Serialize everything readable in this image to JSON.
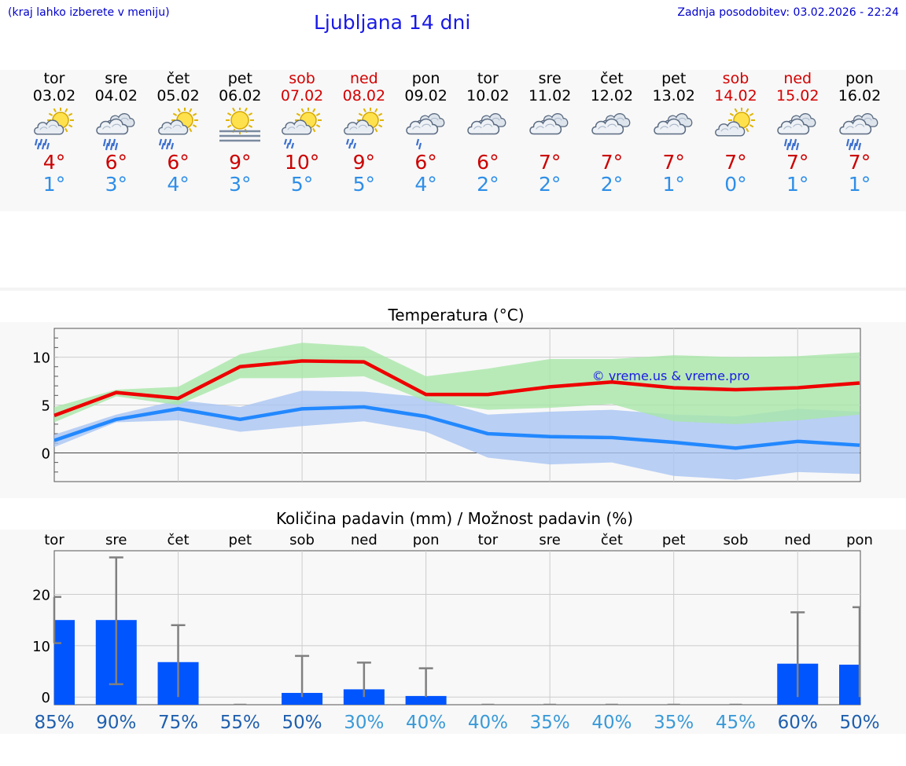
{
  "header": {
    "left_note": "(kraj lahko izberete v meniju)",
    "title": "Ljubljana 14 dni",
    "updated": "Zadnja posodobitev: 03.02.2026 - 22:24"
  },
  "days": [
    {
      "weekday": "tor",
      "date": "03.02",
      "icon": "partly-sunny-rain-icon",
      "tmax": "4°",
      "tmin": "1°",
      "weekend": false
    },
    {
      "weekday": "sre",
      "date": "04.02",
      "icon": "cloudy-rain-icon",
      "tmax": "6°",
      "tmin": "3°",
      "weekend": false
    },
    {
      "weekday": "čet",
      "date": "05.02",
      "icon": "partly-sunny-rain-icon",
      "tmax": "6°",
      "tmin": "4°",
      "weekend": false
    },
    {
      "weekday": "pet",
      "date": "06.02",
      "icon": "sun-fog-icon",
      "tmax": "9°",
      "tmin": "3°",
      "weekend": false
    },
    {
      "weekday": "sob",
      "date": "07.02",
      "icon": "partly-sunny-light-rain-icon",
      "tmax": "10°",
      "tmin": "5°",
      "weekend": true
    },
    {
      "weekday": "ned",
      "date": "08.02",
      "icon": "partly-sunny-light-rain-icon",
      "tmax": "9°",
      "tmin": "5°",
      "weekend": true
    },
    {
      "weekday": "pon",
      "date": "09.02",
      "icon": "cloudy-light-rain-icon",
      "tmax": "6°",
      "tmin": "4°",
      "weekend": false
    },
    {
      "weekday": "tor",
      "date": "10.02",
      "icon": "cloudy-icon",
      "tmax": "6°",
      "tmin": "2°",
      "weekend": false
    },
    {
      "weekday": "sre",
      "date": "11.02",
      "icon": "cloudy-icon",
      "tmax": "7°",
      "tmin": "2°",
      "weekend": false
    },
    {
      "weekday": "čet",
      "date": "12.02",
      "icon": "cloudy-icon",
      "tmax": "7°",
      "tmin": "2°",
      "weekend": false
    },
    {
      "weekday": "pet",
      "date": "13.02",
      "icon": "cloudy-icon",
      "tmax": "7°",
      "tmin": "1°",
      "weekend": false
    },
    {
      "weekday": "sob",
      "date": "14.02",
      "icon": "partly-sunny-icon",
      "tmax": "7°",
      "tmin": "0°",
      "weekend": true
    },
    {
      "weekday": "ned",
      "date": "15.02",
      "icon": "cloudy-rain-icon",
      "tmax": "7°",
      "tmin": "1°",
      "weekend": true
    },
    {
      "weekday": "pon",
      "date": "16.02",
      "icon": "cloudy-rain-icon",
      "tmax": "7°",
      "tmin": "1°",
      "weekend": false
    }
  ],
  "colors": {
    "max_line": "#ee0000",
    "min_line": "#2288ff",
    "max_band": "#a8e6a8",
    "min_band": "#a9c4f2",
    "bar": "#0055ff",
    "whisker": "#808080",
    "weekend": "#d40000"
  },
  "chart_data": [
    {
      "type": "line",
      "title": "Temperatura (°C)",
      "watermark": "© vreme.us & vreme.pro",
      "ylim": [
        -3,
        13
      ],
      "yticks": [
        "10",
        "5",
        "0"
      ],
      "ytick_values": [
        10,
        5,
        0
      ],
      "x": [
        0,
        1,
        2,
        3,
        4,
        5,
        6,
        7,
        8,
        9,
        10,
        11,
        12,
        13
      ],
      "series": [
        {
          "name": "max",
          "values": [
            3.9,
            6.3,
            5.7,
            9.0,
            9.6,
            9.5,
            6.1,
            6.1,
            6.9,
            7.4,
            6.8,
            6.6,
            6.8,
            7.3
          ],
          "band_low": [
            3.2,
            5.9,
            5.0,
            7.8,
            7.8,
            8.0,
            5.4,
            4.5,
            4.7,
            5.1,
            3.3,
            3.0,
            3.4,
            4.0
          ],
          "band_high": [
            4.8,
            6.6,
            6.9,
            10.3,
            11.5,
            11.1,
            8.0,
            8.8,
            9.8,
            9.8,
            10.2,
            10.0,
            10.1,
            10.5
          ]
        },
        {
          "name": "min",
          "values": [
            1.3,
            3.5,
            4.6,
            3.5,
            4.6,
            4.8,
            3.8,
            2.0,
            1.7,
            1.6,
            1.1,
            0.5,
            1.2,
            0.8
          ],
          "band_low": [
            0.6,
            3.2,
            3.4,
            2.2,
            2.8,
            3.3,
            2.2,
            -0.5,
            -1.2,
            -1.0,
            -2.4,
            -2.8,
            -2.0,
            -2.2
          ],
          "band_high": [
            1.9,
            4.0,
            5.5,
            4.8,
            6.5,
            6.4,
            5.8,
            4.0,
            4.3,
            4.5,
            4.0,
            3.8,
            4.6,
            4.3
          ]
        }
      ]
    },
    {
      "type": "bar",
      "title": "Količina padavin (mm) / Možnost padavin (%)",
      "categories": [
        "tor",
        "sre",
        "čet",
        "pet",
        "sob",
        "ned",
        "pon",
        "tor",
        "sre",
        "čet",
        "pet",
        "sob",
        "ned",
        "pon"
      ],
      "ylim": [
        -1.5,
        28.5
      ],
      "yticks": [
        "20",
        "10",
        "0"
      ],
      "ytick_values": [
        20,
        10,
        0
      ],
      "values": [
        15.0,
        15.0,
        6.8,
        0,
        0.8,
        1.5,
        0.2,
        0,
        0,
        0,
        0,
        0,
        6.5,
        6.3
      ],
      "err_low": [
        10.5,
        2.5,
        0,
        0,
        0,
        0,
        0,
        0,
        0,
        0,
        0,
        0,
        0,
        0
      ],
      "err_high": [
        19.5,
        27.2,
        14.0,
        0,
        8.0,
        6.7,
        5.6,
        0,
        0,
        0,
        0,
        0,
        16.5,
        17.5
      ],
      "probability": [
        "85%",
        "90%",
        "75%",
        "55%",
        "50%",
        "30%",
        "40%",
        "40%",
        "35%",
        "40%",
        "35%",
        "45%",
        "60%",
        "50%"
      ],
      "probability_values": [
        85,
        90,
        75,
        55,
        50,
        30,
        40,
        40,
        35,
        40,
        35,
        45,
        60,
        50
      ]
    }
  ]
}
